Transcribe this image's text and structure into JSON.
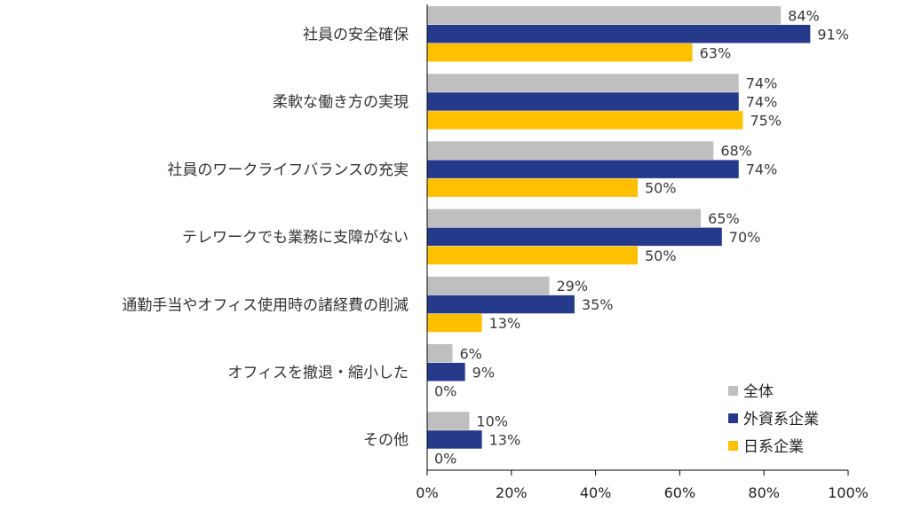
{
  "chart_data": {
    "type": "bar",
    "orientation": "horizontal",
    "categories": [
      "社員の安全確保",
      "柔軟な働き方の実現",
      "社員のワークライフバランスの充実",
      "テレワークでも業務に支障がない",
      "通勤手当やオフィス使用時の諸経費の削減",
      "オフィスを撤退・縮小した",
      "その他"
    ],
    "series": [
      {
        "name": "全体",
        "color": "#bfbfbf",
        "values": [
          84,
          74,
          68,
          65,
          29,
          6,
          10
        ],
        "labels": [
          "84%",
          "74%",
          "68%",
          "65%",
          "29%",
          "6%",
          "10%"
        ]
      },
      {
        "name": "外資系企業",
        "color": "#253a8a",
        "values": [
          91,
          74,
          74,
          70,
          35,
          9,
          13
        ],
        "labels": [
          "91%",
          "74%",
          "74%",
          "70%",
          "35%",
          "9%",
          "13%"
        ]
      },
      {
        "name": "日系企業",
        "color": "#ffc000",
        "values": [
          63,
          75,
          50,
          50,
          13,
          0,
          0
        ],
        "labels": [
          "63%",
          "75%",
          "50%",
          "50%",
          "13%",
          "0%",
          "0%"
        ]
      }
    ],
    "xlim": [
      0,
      100
    ],
    "xticks": [
      "0%",
      "20%",
      "40%",
      "60%",
      "80%",
      "100%"
    ],
    "grid": false,
    "legend_position": "bottom-right"
  }
}
